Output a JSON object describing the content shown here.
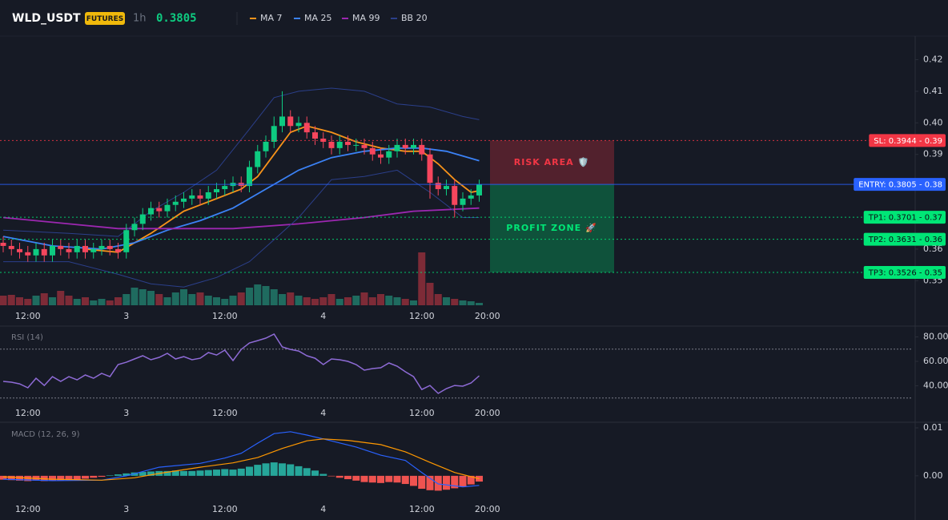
{
  "header": {
    "symbol": "WLD_USDT",
    "badge": "FUTURES",
    "interval": "1h",
    "price": 0.3805
  },
  "chart_data": [
    {
      "type": "candlestick",
      "ylim": [
        0.3422,
        0.4275
      ],
      "up_color": "#0ecb81",
      "down_color": "#f6465d",
      "xticks": [
        {
          "value": 3,
          "label": "12:00"
        },
        {
          "value": 15,
          "label": "3"
        },
        {
          "value": 27,
          "label": "12:00"
        },
        {
          "value": 39,
          "label": "4"
        },
        {
          "value": 51,
          "label": "12:00"
        },
        {
          "value": 59,
          "label": "20:00"
        }
      ],
      "yticks": [
        0.42,
        0.41,
        {
          "value": 0.4,
          "label": "0.40"
        },
        0.39,
        0.38,
        0.37,
        0.36,
        0.35
      ],
      "open": [
        0.362,
        0.361,
        0.36,
        0.359,
        0.358,
        0.36,
        0.358,
        0.361,
        0.36,
        0.359,
        0.361,
        0.359,
        0.36,
        0.361,
        0.36,
        0.359,
        0.366,
        0.368,
        0.371,
        0.373,
        0.372,
        0.374,
        0.375,
        0.376,
        0.377,
        0.376,
        0.378,
        0.379,
        0.38,
        0.381,
        0.38,
        0.386,
        0.391,
        0.394,
        0.399,
        0.402,
        0.399,
        0.4,
        0.397,
        0.395,
        0.394,
        0.392,
        0.394,
        0.393,
        0.393,
        0.392,
        0.39,
        0.389,
        0.391,
        0.393,
        0.392,
        0.393,
        0.39,
        0.381,
        0.379,
        0.38,
        0.374,
        0.376,
        0.377
      ],
      "high": [
        0.364,
        0.363,
        0.362,
        0.361,
        0.362,
        0.362,
        0.363,
        0.363,
        0.362,
        0.363,
        0.363,
        0.362,
        0.363,
        0.363,
        0.362,
        0.368,
        0.37,
        0.373,
        0.375,
        0.375,
        0.376,
        0.377,
        0.378,
        0.379,
        0.379,
        0.38,
        0.381,
        0.382,
        0.383,
        0.383,
        0.388,
        0.393,
        0.396,
        0.402,
        0.41,
        0.404,
        0.402,
        0.402,
        0.399,
        0.397,
        0.396,
        0.396,
        0.396,
        0.395,
        0.395,
        0.394,
        0.392,
        0.393,
        0.395,
        0.395,
        0.395,
        0.395,
        0.392,
        0.383,
        0.382,
        0.382,
        0.378,
        0.379,
        0.382
      ],
      "low": [
        0.359,
        0.358,
        0.357,
        0.356,
        0.356,
        0.356,
        0.356,
        0.358,
        0.357,
        0.357,
        0.357,
        0.357,
        0.358,
        0.358,
        0.357,
        0.357,
        0.364,
        0.366,
        0.369,
        0.37,
        0.37,
        0.372,
        0.373,
        0.374,
        0.374,
        0.374,
        0.376,
        0.377,
        0.378,
        0.378,
        0.378,
        0.384,
        0.389,
        0.392,
        0.397,
        0.397,
        0.397,
        0.395,
        0.393,
        0.392,
        0.39,
        0.39,
        0.391,
        0.391,
        0.39,
        0.388,
        0.387,
        0.387,
        0.389,
        0.39,
        0.39,
        0.388,
        0.376,
        0.377,
        0.377,
        0.37,
        0.372,
        0.374,
        0.375
      ],
      "close": [
        0.361,
        0.36,
        0.359,
        0.358,
        0.36,
        0.358,
        0.361,
        0.36,
        0.359,
        0.361,
        0.359,
        0.36,
        0.361,
        0.36,
        0.359,
        0.366,
        0.368,
        0.371,
        0.373,
        0.372,
        0.374,
        0.375,
        0.376,
        0.377,
        0.376,
        0.378,
        0.379,
        0.38,
        0.381,
        0.38,
        0.386,
        0.391,
        0.394,
        0.399,
        0.402,
        0.399,
        0.4,
        0.397,
        0.395,
        0.394,
        0.392,
        0.394,
        0.393,
        0.393,
        0.392,
        0.39,
        0.389,
        0.391,
        0.393,
        0.392,
        0.393,
        0.39,
        0.381,
        0.379,
        0.38,
        0.374,
        0.376,
        0.377,
        0.3805
      ],
      "volume": [
        12,
        13,
        10,
        8,
        12,
        15,
        10,
        18,
        12,
        8,
        10,
        6,
        8,
        6,
        10,
        14,
        22,
        20,
        18,
        14,
        10,
        16,
        20,
        14,
        16,
        12,
        10,
        8,
        12,
        16,
        22,
        26,
        24,
        20,
        14,
        16,
        12,
        10,
        8,
        10,
        14,
        8,
        10,
        12,
        16,
        10,
        14,
        12,
        10,
        8,
        6,
        66,
        28,
        14,
        10,
        8,
        6,
        5,
        3
      ],
      "volume_lim": [
        0,
        80
      ],
      "volume_colors": [
        "#1f6b5f",
        "#7d2b37"
      ],
      "series": [
        {
          "name": "MA 7",
          "color": "#f7931a",
          "x": [
            10,
            14,
            18,
            22,
            26,
            29,
            31,
            33,
            35,
            37,
            40,
            43,
            46,
            49,
            51,
            53,
            55,
            57,
            58
          ],
          "values": [
            0.36,
            0.359,
            0.365,
            0.372,
            0.376,
            0.379,
            0.383,
            0.39,
            0.397,
            0.399,
            0.397,
            0.394,
            0.392,
            0.391,
            0.391,
            0.387,
            0.382,
            0.378,
            0.3785
          ]
        },
        {
          "name": "MA 25",
          "color": "#3b82f6",
          "x": [
            0,
            6,
            12,
            16,
            20,
            24,
            28,
            32,
            36,
            40,
            44,
            48,
            51,
            54,
            58
          ],
          "values": [
            0.364,
            0.361,
            0.36,
            0.362,
            0.366,
            0.369,
            0.373,
            0.379,
            0.385,
            0.389,
            0.391,
            0.392,
            0.392,
            0.391,
            0.388
          ]
        },
        {
          "name": "MA 99",
          "color": "#9c27b0",
          "x": [
            0,
            8,
            14,
            20,
            28,
            36,
            44,
            50,
            58
          ],
          "values": [
            0.37,
            0.368,
            0.3665,
            0.3665,
            0.3665,
            0.368,
            0.37,
            0.372,
            0.373
          ]
        },
        {
          "name": "BB 20",
          "color": "#2b3f8a",
          "x": [
            0,
            8,
            14,
            18,
            22,
            26,
            30,
            33,
            36,
            40,
            44,
            48,
            52,
            56,
            58
          ],
          "upper": [
            0.366,
            0.365,
            0.364,
            0.372,
            0.378,
            0.385,
            0.398,
            0.408,
            0.41,
            0.411,
            0.41,
            0.406,
            0.405,
            0.402,
            0.401
          ],
          "lower": [
            0.356,
            0.356,
            0.352,
            0.349,
            0.348,
            0.351,
            0.356,
            0.363,
            0.37,
            0.382,
            0.383,
            0.385,
            0.378,
            0.37,
            0.37
          ]
        }
      ],
      "levels": [
        {
          "tag": "SL: 0.3944 - 0.39",
          "value": 0.3944,
          "color": "#f23645",
          "text_color": "#ffffff",
          "style": "dotted"
        },
        {
          "tag": "ENTRY: 0.3805 - 0.38",
          "value": 0.3805,
          "color": "#2962ff",
          "text_color": "#ffffff",
          "style": "solid"
        },
        {
          "tag": "TP1: 0.3701 - 0.37",
          "value": 0.3701,
          "color": "#00e676",
          "text_color": "#0b0e14",
          "style": "dotted"
        },
        {
          "tag": "TP2: 0.3631 - 0.36",
          "value": 0.3631,
          "color": "#00e676",
          "text_color": "#0b0e14",
          "style": "dotted"
        },
        {
          "tag": "TP3: 0.3526 - 0.35",
          "value": 0.3526,
          "color": "#00e676",
          "text_color": "#0b0e14",
          "style": "dotted"
        }
      ],
      "zones": [
        {
          "label": "RISK AREA 🛡️",
          "from": 0.3944,
          "to": 0.3805,
          "color": "#f23645"
        },
        {
          "label": "PROFIT ZONE 🚀",
          "from": 0.3805,
          "to": 0.3526,
          "color": "#00e676"
        }
      ]
    },
    {
      "type": "line",
      "title": "RSI (14)",
      "color": "#8e6bd6",
      "ylim": [
        10.2,
        88.2
      ],
      "yticks": [
        {
          "value": 80,
          "label": "80.00"
        },
        {
          "value": 60,
          "label": "60.00"
        },
        {
          "value": 40,
          "label": "40.00"
        }
      ],
      "levels": [
        70,
        30
      ],
      "xticks": [
        {
          "value": 3,
          "label": "12:00"
        },
        {
          "value": 15,
          "label": "3"
        },
        {
          "value": 27,
          "label": "12:00"
        },
        {
          "value": 39,
          "label": "4"
        },
        {
          "value": 51,
          "label": "12:00"
        },
        {
          "value": 59,
          "label": "20:00"
        }
      ],
      "values": [
        43.6,
        43,
        41.6,
        38.4,
        46.2,
        40.3,
        47.5,
        43.6,
        47.5,
        44.9,
        48.9,
        46.2,
        50.2,
        47.5,
        57.4,
        59.3,
        62,
        64.6,
        61.3,
        63.3,
        66.6,
        62,
        63.9,
        61.3,
        62.6,
        67.2,
        65.2,
        69.2,
        60.7,
        69.8,
        75.1,
        77,
        79,
        82.3,
        71.8,
        69.8,
        68.5,
        64.6,
        62.6,
        57.4,
        62,
        61.3,
        60,
        57.4,
        52.8,
        54.1,
        54.8,
        58.7,
        56.1,
        51.5,
        47.5,
        37,
        40.3,
        33.8,
        37.7,
        40.3,
        39.7,
        42.3,
        48.2
      ]
    },
    {
      "type": "macd",
      "title": "MACD (12, 26, 9)",
      "ylim": [
        -0.0052,
        0.011
      ],
      "hist_colors": [
        "#26a69a",
        "#ef5350"
      ],
      "yticks": [
        {
          "value": 0.01,
          "label": "0.01"
        },
        {
          "value": 0,
          "label": "0.00"
        }
      ],
      "xticks": [
        {
          "value": 3,
          "label": "12:00"
        },
        {
          "value": 15,
          "label": "3"
        },
        {
          "value": 27,
          "label": "12:00"
        },
        {
          "value": 39,
          "label": "4"
        },
        {
          "value": 51,
          "label": "12:00"
        },
        {
          "value": 59,
          "label": "20:00"
        }
      ],
      "histogram": [
        -0.0008,
        -0.0009,
        -0.001,
        -0.0011,
        -0.001,
        -0.0011,
        -0.001,
        -0.001,
        -0.0009,
        -0.0008,
        -0.0006,
        -0.0004,
        -0.0002,
        0.0001,
        0.0003,
        0.0005,
        0.0007,
        0.0008,
        0.0009,
        0.001,
        0.001,
        0.0011,
        0.001,
        0.001,
        0.0011,
        0.0012,
        0.0013,
        0.0014,
        0.0013,
        0.0015,
        0.0019,
        0.0023,
        0.0026,
        0.0028,
        0.0026,
        0.0024,
        0.002,
        0.0016,
        0.0011,
        0.0004,
        -0.0001,
        -0.0004,
        -0.0007,
        -0.001,
        -0.0013,
        -0.0014,
        -0.0015,
        -0.0013,
        -0.0014,
        -0.0017,
        -0.0021,
        -0.0027,
        -0.003,
        -0.0031,
        -0.0029,
        -0.0026,
        -0.0022,
        -0.0018,
        -0.0012
      ],
      "series": [
        {
          "color": "#2962ff",
          "x": [
            0,
            6,
            12,
            15,
            19,
            24,
            27,
            29,
            31,
            33,
            35,
            37,
            39,
            43,
            46,
            49,
            51,
            53,
            56,
            58
          ],
          "values": [
            -0.0007,
            -0.001,
            -0.0009,
            0.0,
            0.0018,
            0.0026,
            0.0037,
            0.0047,
            0.0068,
            0.0088,
            0.0092,
            0.0085,
            0.0077,
            0.006,
            0.0043,
            0.0032,
            0.0007,
            -0.0017,
            -0.0023,
            -0.002
          ]
        },
        {
          "color": "#ff9800",
          "x": [
            0,
            6,
            12,
            16,
            19,
            24,
            28,
            31,
            34,
            37,
            39,
            42,
            46,
            49,
            52,
            55,
            58
          ],
          "values": [
            -0.0002,
            -0.0007,
            -0.0009,
            -0.0004,
            0.0005,
            0.0018,
            0.0027,
            0.0038,
            0.0057,
            0.0073,
            0.0077,
            0.0074,
            0.0065,
            0.005,
            0.0028,
            0.0007,
            -0.0006
          ]
        }
      ]
    }
  ]
}
